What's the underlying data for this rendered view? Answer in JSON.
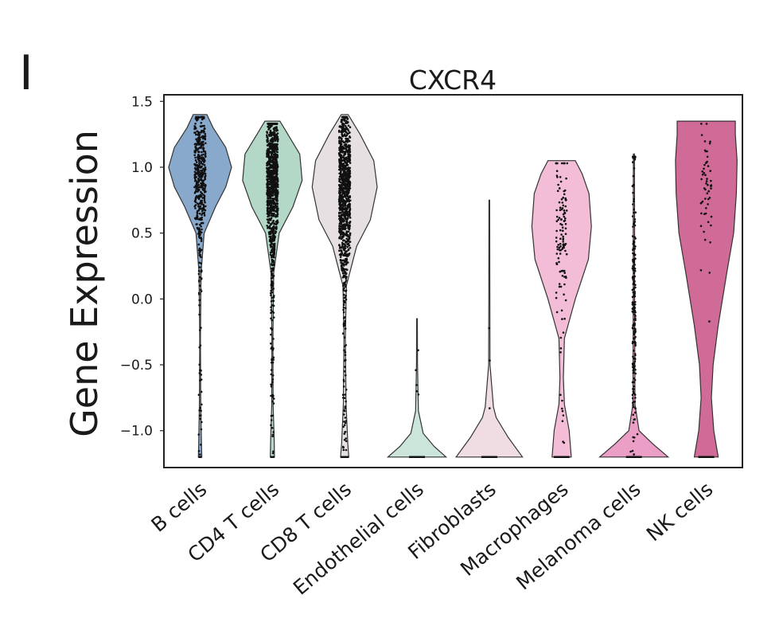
{
  "panel_label": "I",
  "chart_data": {
    "type": "violin",
    "title": "CXCR4",
    "xlabel": "",
    "ylabel": "Gene Expression",
    "ylim": [
      -1.28,
      1.55
    ],
    "yticks": [
      1.5,
      1.0,
      0.5,
      0.0,
      -0.5,
      -1.0
    ],
    "ytick_labels": [
      "1.5",
      "1.0",
      "0.5",
      "0.0",
      "−0.5",
      "−1.0"
    ],
    "grid": false,
    "legend": "none",
    "categories": [
      "B cells",
      "CD4 T cells",
      "CD8 T cells",
      "Endothelial cells",
      "Fibroblasts",
      "Macrophages",
      "Melanoma cells",
      "NK cells"
    ],
    "series": [
      {
        "colour": "#88a9cc",
        "min": -1.2,
        "max": 1.4,
        "n_points": 500,
        "center": 0.95,
        "spread": 0.28,
        "profile": [
          [
            -1.2,
            0.05
          ],
          [
            -1.1,
            0.04
          ],
          [
            -0.8,
            0.02
          ],
          [
            -0.3,
            0.01
          ],
          [
            0.2,
            0.03
          ],
          [
            0.5,
            0.12
          ],
          [
            0.7,
            0.45
          ],
          [
            0.85,
            0.75
          ],
          [
            1.0,
            0.92
          ],
          [
            1.15,
            0.75
          ],
          [
            1.3,
            0.38
          ],
          [
            1.4,
            0.2
          ]
        ]
      },
      {
        "colour": "#b4d8c8",
        "min": -1.2,
        "max": 1.35,
        "n_points": 1100,
        "center": 0.9,
        "spread": 0.32,
        "profile": [
          [
            -1.2,
            0.06
          ],
          [
            -1.05,
            0.05
          ],
          [
            -0.8,
            0.02
          ],
          [
            -0.3,
            0.015
          ],
          [
            0.2,
            0.04
          ],
          [
            0.5,
            0.2
          ],
          [
            0.7,
            0.6
          ],
          [
            0.9,
            0.87
          ],
          [
            1.1,
            0.8
          ],
          [
            1.25,
            0.45
          ],
          [
            1.35,
            0.22
          ]
        ]
      },
      {
        "colour": "#e6e0e2",
        "min": -1.2,
        "max": 1.4,
        "n_points": 1100,
        "center": 0.85,
        "spread": 0.34,
        "profile": [
          [
            -1.2,
            0.12
          ],
          [
            -1.1,
            0.09
          ],
          [
            -0.8,
            0.04
          ],
          [
            -0.3,
            0.02
          ],
          [
            0.1,
            0.05
          ],
          [
            0.4,
            0.35
          ],
          [
            0.6,
            0.75
          ],
          [
            0.85,
            0.95
          ],
          [
            1.05,
            0.85
          ],
          [
            1.25,
            0.45
          ],
          [
            1.4,
            0.1
          ]
        ]
      },
      {
        "colour": "#cce5da",
        "min": -1.2,
        "max": -0.15,
        "n_points": 5,
        "center": -0.6,
        "spread": 0.3,
        "profile": [
          [
            -1.2,
            0.85
          ],
          [
            -1.12,
            0.5
          ],
          [
            -1.02,
            0.18
          ],
          [
            -0.85,
            0.04
          ],
          [
            -0.5,
            0.015
          ],
          [
            -0.15,
            0.01
          ]
        ]
      },
      {
        "colour": "#f0dde3",
        "min": -1.2,
        "max": 0.75,
        "n_points": 3,
        "center": -0.6,
        "spread": 0.4,
        "profile": [
          [
            -1.2,
            0.97
          ],
          [
            -1.05,
            0.55
          ],
          [
            -0.9,
            0.2
          ],
          [
            -0.82,
            0.12
          ],
          [
            -0.5,
            0.02
          ],
          [
            0.0,
            0.015
          ],
          [
            0.75,
            0.01
          ]
        ]
      },
      {
        "colour": "#f3bdd8",
        "min": -1.2,
        "max": 1.05,
        "n_points": 130,
        "center": 0.45,
        "spread": 0.35,
        "profile": [
          [
            -1.2,
            0.28
          ],
          [
            -1.0,
            0.22
          ],
          [
            -0.8,
            0.08
          ],
          [
            -0.6,
            0.05
          ],
          [
            -0.3,
            0.08
          ],
          [
            0.0,
            0.4
          ],
          [
            0.3,
            0.78
          ],
          [
            0.55,
            0.87
          ],
          [
            0.8,
            0.8
          ],
          [
            0.95,
            0.6
          ],
          [
            1.05,
            0.4
          ]
        ]
      },
      {
        "colour": "#ec9fc6",
        "min": -1.2,
        "max": 1.1,
        "n_points": 200,
        "center": 0.0,
        "spread": 0.5,
        "profile": [
          [
            -1.2,
            1.0
          ],
          [
            -1.1,
            0.55
          ],
          [
            -1.0,
            0.15
          ],
          [
            -0.8,
            0.03
          ],
          [
            -0.5,
            0.025
          ],
          [
            0.0,
            0.02
          ],
          [
            0.5,
            0.02
          ],
          [
            1.1,
            0.015
          ]
        ]
      },
      {
        "colour": "#d06a97",
        "min": -1.2,
        "max": 1.35,
        "n_points": 55,
        "center": 0.8,
        "spread": 0.25,
        "profile": [
          [
            -1.2,
            0.35
          ],
          [
            -1.0,
            0.22
          ],
          [
            -0.75,
            0.15
          ],
          [
            -0.5,
            0.2
          ],
          [
            -0.2,
            0.35
          ],
          [
            0.2,
            0.6
          ],
          [
            0.5,
            0.8
          ],
          [
            0.8,
            0.88
          ],
          [
            1.05,
            0.9
          ],
          [
            1.25,
            0.85
          ],
          [
            1.35,
            0.85
          ]
        ]
      }
    ]
  }
}
